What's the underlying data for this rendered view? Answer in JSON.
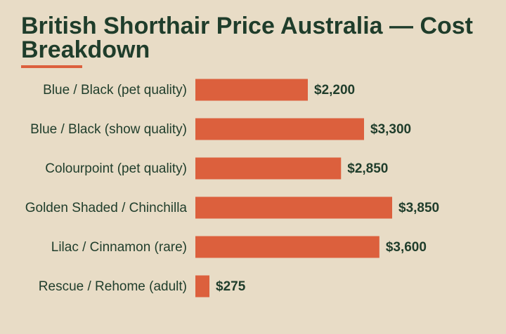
{
  "colors": {
    "background": "#e8dcc6",
    "title": "#1f3d2b",
    "bar": "#dc603d",
    "accent": "#dc603d"
  },
  "chart_data": {
    "type": "bar",
    "orientation": "horizontal",
    "title": "British Shorthair Price Australia — Cost Breakdown",
    "categories": [
      "Blue / Black (pet quality)",
      "Blue / Black (show quality)",
      "Colourpoint (pet quality)",
      "Golden Shaded / Chinchilla",
      "Lilac / Cinnamon (rare)",
      "Rescue / Rehome (adult)"
    ],
    "values": [
      2200,
      3300,
      2850,
      3850,
      3600,
      275
    ],
    "value_labels": [
      "$2,200",
      "$3,300",
      "$2,850",
      "$3,850",
      "$3,600",
      "$275"
    ],
    "xlim": [
      0,
      3850
    ],
    "grid": false,
    "legend": "none"
  }
}
